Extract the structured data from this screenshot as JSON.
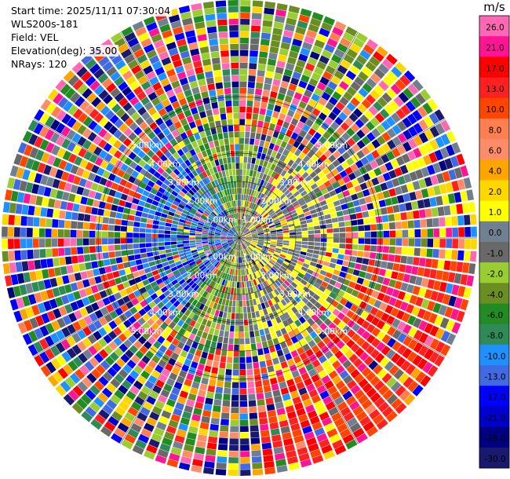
{
  "info": {
    "start_time": "Start time: 2025/11/11 07:30:04",
    "instrument": "WLS200s-181",
    "field": "Field: VEL",
    "elevation": "Elevation(deg): 35.00",
    "nrays": "NRays: 120"
  },
  "colorbar": {
    "unit": "m/s",
    "ticks": [
      "26.0",
      "21.0",
      "17.0",
      "13.0",
      "10.0",
      "8.0",
      "6.0",
      "4.0",
      "2.0",
      "1.0",
      "0.0",
      "-1.0",
      "-2.0",
      "-4.0",
      "-6.0",
      "-8.0",
      "-10.0",
      "-13.0",
      "-17.0",
      "-21.0",
      "-26.0",
      "-30.0"
    ],
    "colors": [
      "#ff69b4",
      "#ff1493",
      "#ff0000",
      "#ff2020",
      "#ff4500",
      "#ff7f50",
      "#ff8c69",
      "#ffa500",
      "#ffd700",
      "#ffff00",
      "#708090",
      "#696969",
      "#9acd32",
      "#6b8e23",
      "#228b22",
      "#2e8b57",
      "#1e90ff",
      "#4169e1",
      "#0000ff",
      "#0000cd",
      "#000080",
      "#191970"
    ]
  },
  "chart_data": {
    "type": "heatmap",
    "projection": "polar",
    "field": "VEL",
    "unit": "m/s",
    "nrays": 120,
    "elevation_deg": 35.0,
    "range_ring_labels": [
      "1.00km",
      "2.00km",
      "3.00km",
      "4.00km",
      "5.00km"
    ],
    "max_range_km": 5.0,
    "value_range": [
      -30.0,
      26.0
    ],
    "pattern": "near-range: blue/green (negative) to the west, yellow/orange (positive) to the east; strong positive (red/orange) far range south-east; otherwise noisy speckle at far range"
  }
}
